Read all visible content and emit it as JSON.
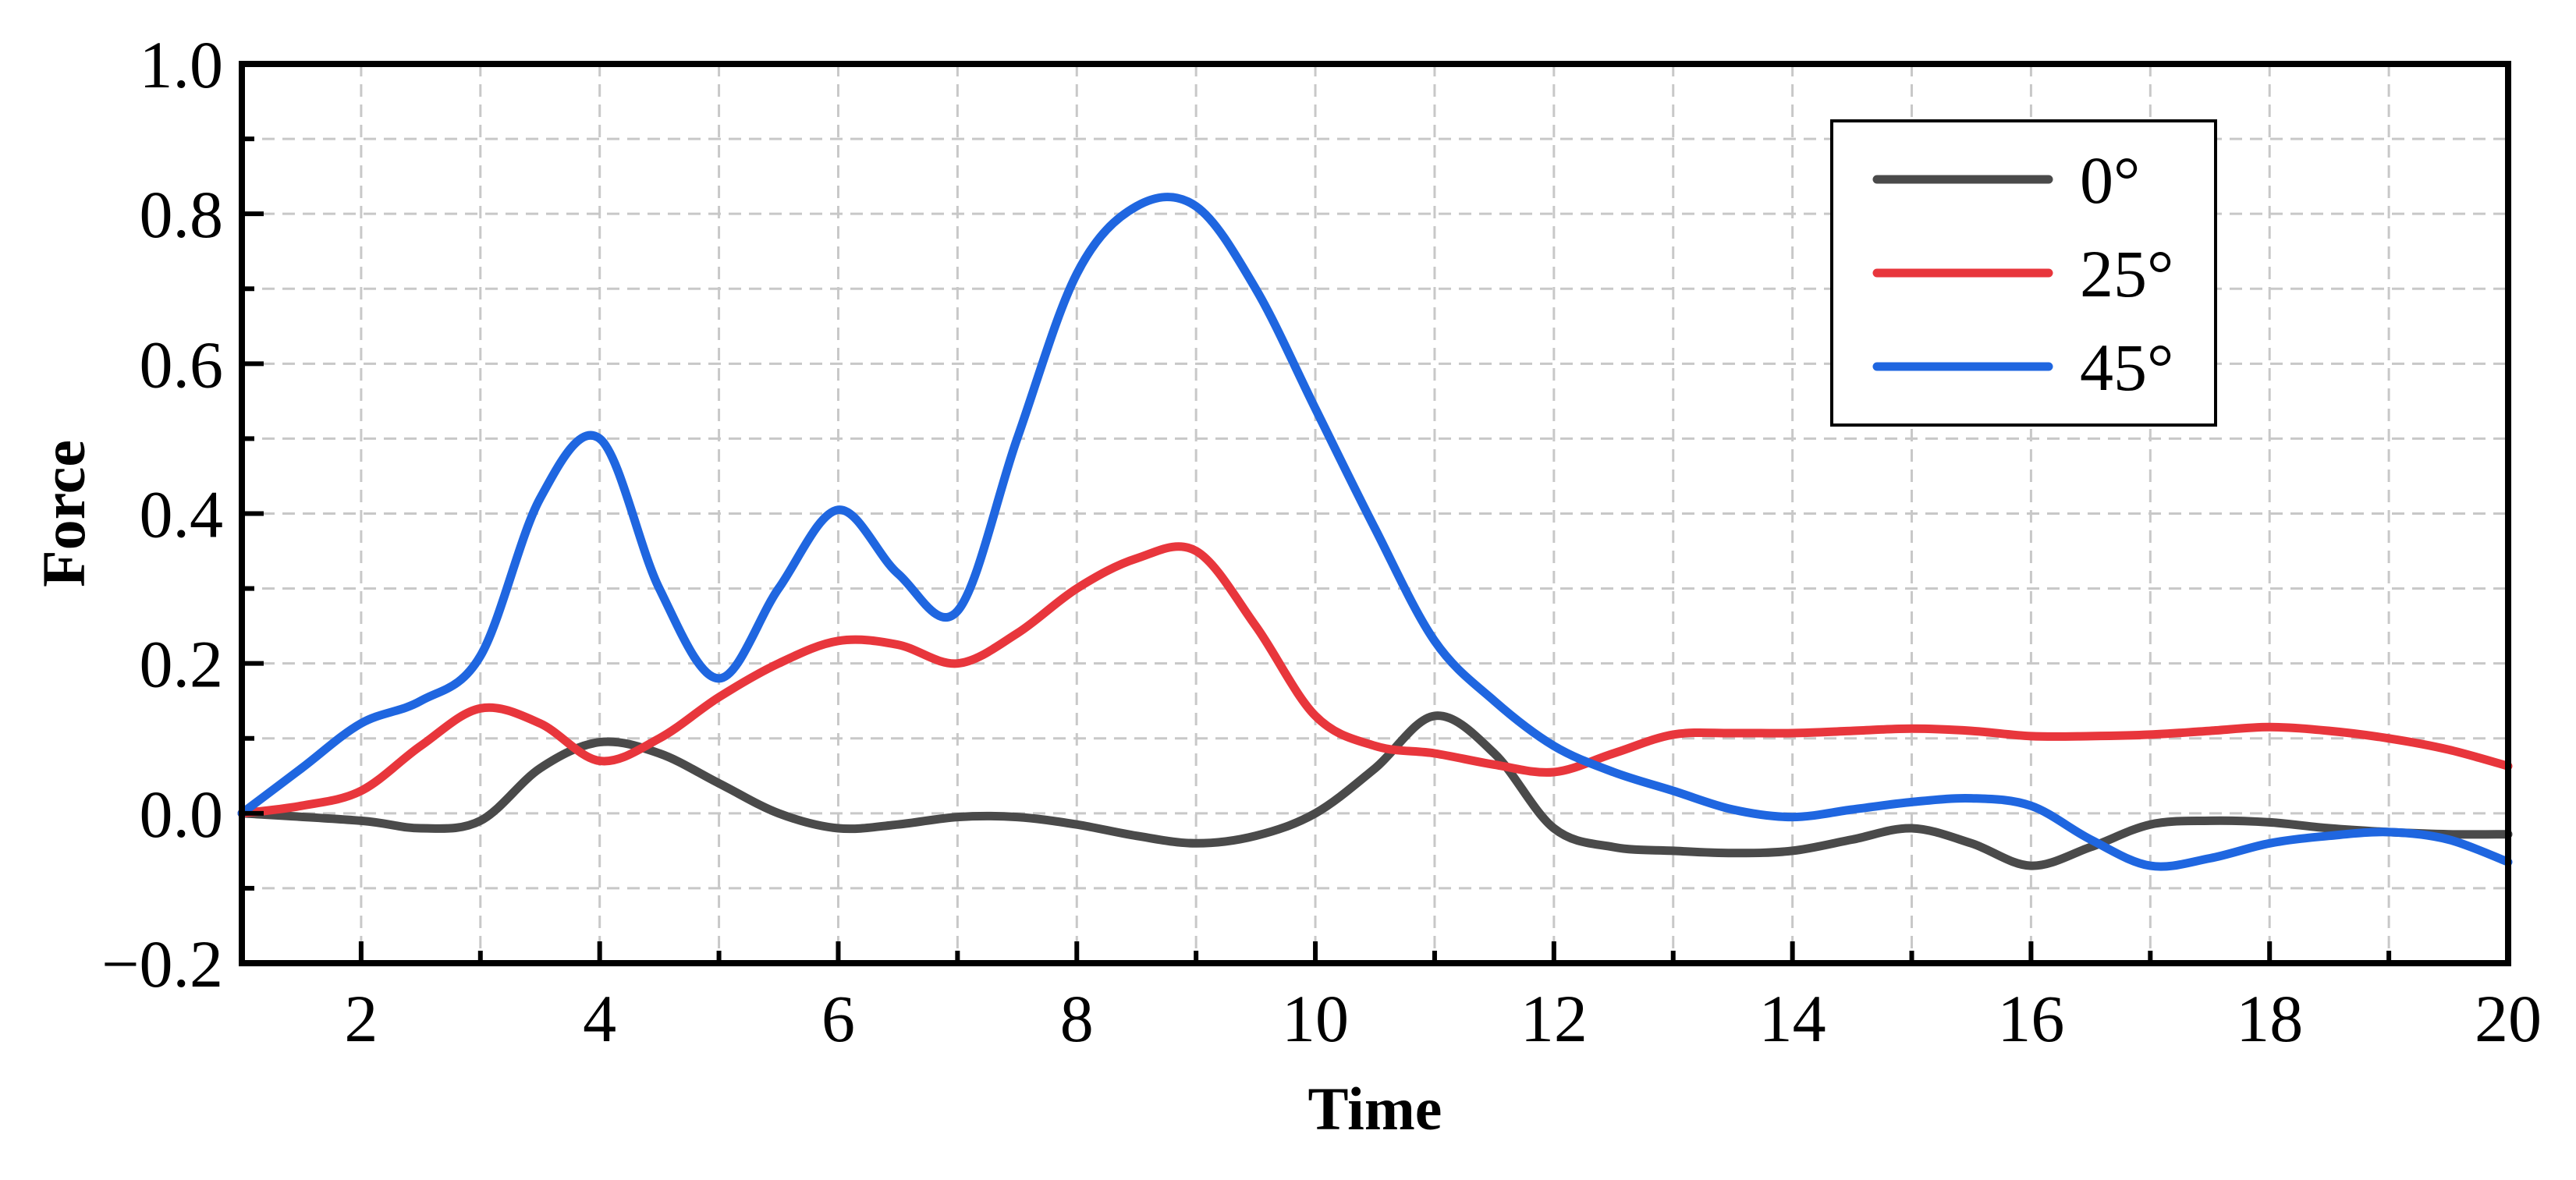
{
  "chart_data": {
    "type": "line",
    "title": "",
    "xlabel": "Time",
    "ylabel": "Force",
    "xlim": [
      1,
      20
    ],
    "ylim": [
      -0.2,
      1.0
    ],
    "grid": true,
    "legend_position": "top-right",
    "x_ticks": [
      2,
      4,
      6,
      8,
      10,
      12,
      14,
      16,
      18,
      20
    ],
    "x_tick_labels": [
      "2",
      "4",
      "6",
      "8",
      "10",
      "12",
      "14",
      "16",
      "18",
      "20"
    ],
    "y_ticks": [
      -0.2,
      0.0,
      0.2,
      0.4,
      0.6,
      0.8,
      1.0
    ],
    "y_tick_labels": [
      "−0.2",
      "0.0",
      "0.2",
      "0.4",
      "0.6",
      "0.8",
      "1.0"
    ],
    "series": [
      {
        "name": "0°",
        "color": "#4a4a4a",
        "x": [
          1,
          2,
          2.5,
          3,
          3.5,
          4,
          4.5,
          5,
          5.5,
          6,
          6.5,
          7,
          7.5,
          8,
          8.5,
          9,
          9.5,
          10,
          10.5,
          11,
          11.5,
          12,
          12.5,
          13,
          13.5,
          14,
          14.5,
          15,
          15.5,
          16,
          16.5,
          17,
          17.5,
          18,
          18.5,
          19,
          19.5,
          20
        ],
        "y": [
          0.0,
          -0.01,
          -0.02,
          -0.01,
          0.06,
          0.095,
          0.08,
          0.04,
          0.0,
          -0.02,
          -0.015,
          -0.005,
          -0.005,
          -0.015,
          -0.03,
          -0.04,
          -0.03,
          0.0,
          0.06,
          0.13,
          0.08,
          -0.02,
          -0.045,
          -0.05,
          -0.053,
          -0.05,
          -0.035,
          -0.02,
          -0.04,
          -0.07,
          -0.045,
          -0.015,
          -0.01,
          -0.012,
          -0.02,
          -0.025,
          -0.028,
          -0.028
        ]
      },
      {
        "name": "25°",
        "color": "#e8363c",
        "x": [
          1,
          1.5,
          2,
          2.5,
          3,
          3.5,
          4,
          4.5,
          5,
          5.5,
          6,
          6.5,
          7,
          7.5,
          8,
          8.5,
          9,
          9.5,
          10,
          10.5,
          11,
          11.5,
          12,
          12.5,
          13,
          13.5,
          14,
          14.5,
          15,
          15.5,
          16,
          16.5,
          17,
          17.5,
          18,
          18.5,
          19,
          19.5,
          20
        ],
        "y": [
          0.0,
          0.01,
          0.03,
          0.09,
          0.14,
          0.12,
          0.07,
          0.1,
          0.155,
          0.2,
          0.23,
          0.225,
          0.2,
          0.24,
          0.3,
          0.34,
          0.35,
          0.25,
          0.13,
          0.09,
          0.08,
          0.065,
          0.055,
          0.08,
          0.105,
          0.107,
          0.107,
          0.11,
          0.113,
          0.11,
          0.103,
          0.103,
          0.105,
          0.11,
          0.115,
          0.11,
          0.1,
          0.085,
          0.063
        ]
      },
      {
        "name": "45°",
        "color": "#1f66e0",
        "x": [
          1,
          1.5,
          2,
          2.5,
          3,
          3.5,
          4,
          4.5,
          5,
          5.5,
          6,
          6.5,
          7,
          7.5,
          8,
          8.5,
          9,
          9.5,
          10,
          10.5,
          11,
          11.5,
          12,
          12.5,
          13,
          13.5,
          14,
          14.5,
          15,
          15.5,
          16,
          16.5,
          17,
          17.5,
          18,
          18.5,
          19,
          19.5,
          20
        ],
        "y": [
          0.0,
          0.06,
          0.12,
          0.15,
          0.21,
          0.42,
          0.5,
          0.3,
          0.18,
          0.3,
          0.405,
          0.32,
          0.27,
          0.5,
          0.72,
          0.81,
          0.81,
          0.7,
          0.54,
          0.38,
          0.23,
          0.15,
          0.09,
          0.055,
          0.03,
          0.005,
          -0.005,
          0.005,
          0.015,
          0.02,
          0.01,
          -0.035,
          -0.07,
          -0.06,
          -0.04,
          -0.03,
          -0.025,
          -0.035,
          -0.065
        ]
      }
    ]
  }
}
